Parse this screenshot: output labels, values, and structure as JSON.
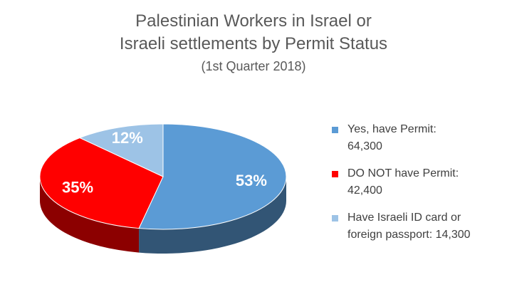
{
  "title_lines": [
    "Palestinian Workers in Israel or",
    "Israeli settlements by Permit Status"
  ],
  "subtitle": "(1st Quarter 2018)",
  "chart_data": {
    "type": "pie",
    "style": "3d",
    "title": "Palestinian Workers in Israel or Israeli settlements by Permit Status",
    "subtitle": "(1st Quarter 2018)",
    "legend_position": "right",
    "slices": [
      {
        "legend_lines": [
          "Yes, have Permit:",
          "64,300"
        ],
        "value": 64300,
        "percent_label": "53%",
        "color": "#5b9bd5",
        "label_color": "#ffffff"
      },
      {
        "legend_lines": [
          "DO NOT have Permit:",
          "42,400"
        ],
        "value": 42400,
        "percent_label": "35%",
        "color": "#ff0000",
        "label_color": "#ffffff"
      },
      {
        "legend_lines": [
          "Have Israeli ID card or",
          "foreign passport: 14,300"
        ],
        "value": 14300,
        "percent_label": "12%",
        "color": "#9dc3e6",
        "label_color": "#ffffff"
      }
    ]
  }
}
